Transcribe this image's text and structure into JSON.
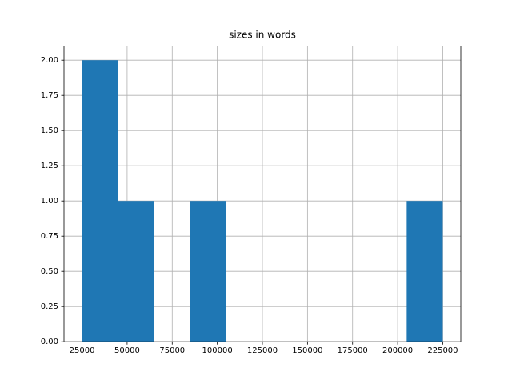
{
  "chart_data": {
    "type": "histogram",
    "title": "sizes in words",
    "bins": [
      25000,
      45000,
      65000,
      85000,
      105000,
      125000,
      145000,
      165000,
      185000,
      205000,
      225000
    ],
    "values": [
      2,
      1,
      0,
      1,
      0,
      0,
      0,
      0,
      0,
      1
    ],
    "color": "#1f77b4",
    "xlim": [
      15000,
      235000
    ],
    "xticks": [
      25000,
      50000,
      75000,
      100000,
      125000,
      150000,
      175000,
      200000,
      225000
    ],
    "ylim": [
      0,
      2.1
    ],
    "yticks": [
      {
        "value": 0,
        "label": "0.00"
      },
      {
        "value": 0.25,
        "label": "0.25"
      },
      {
        "value": 0.5,
        "label": "0.50"
      },
      {
        "value": 0.75,
        "label": "0.75"
      },
      {
        "value": 1,
        "label": "1.00"
      },
      {
        "value": 1.25,
        "label": "1.25"
      },
      {
        "value": 1.5,
        "label": "1.50"
      },
      {
        "value": 1.75,
        "label": "1.75"
      },
      {
        "value": 2,
        "label": "2.00"
      }
    ],
    "grid": true
  }
}
